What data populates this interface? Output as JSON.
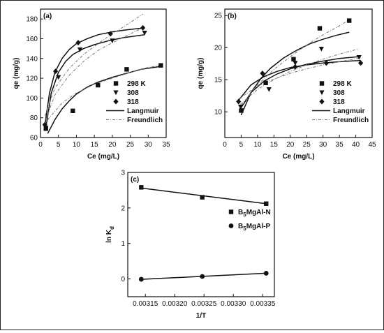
{
  "chart_data": [
    {
      "type": "scatter",
      "panel_label": "(a)",
      "xlabel": "Ce (mg/L)",
      "ylabel": "qe (mg/g)",
      "xlim": [
        0,
        35
      ],
      "ylim": [
        60,
        190
      ],
      "xticks": [
        0,
        5,
        10,
        15,
        20,
        25,
        30,
        35
      ],
      "yticks": [
        60,
        80,
        100,
        120,
        140,
        160,
        180
      ],
      "legend_position": "bottom-right",
      "series": [
        {
          "name": "298 K",
          "marker": "square",
          "x": [
            1.5,
            9,
            16,
            24,
            33.5
          ],
          "y": [
            69,
            87,
            113,
            129,
            133
          ]
        },
        {
          "name": "308",
          "marker": "triangle-down",
          "x": [
            1.5,
            5,
            11,
            20,
            29
          ],
          "y": [
            70,
            121,
            149,
            158,
            166
          ]
        },
        {
          "name": "318",
          "marker": "diamond",
          "x": [
            1.2,
            4.2,
            10.5,
            19.5,
            28.5
          ],
          "y": [
            73,
            127,
            156,
            165,
            171
          ]
        }
      ],
      "fits": [
        {
          "name": "Langmuir",
          "style": "solid",
          "curves": [
            {
              "x": [
                2,
                4,
                6,
                8,
                10,
                13,
                16,
                20,
                24,
                28,
                33.5
              ],
              "y": [
                64,
                78,
                89,
                97,
                104,
                111,
                116,
                121,
                125,
                129,
                132
              ]
            },
            {
              "x": [
                1.5,
                3,
                5,
                7,
                9,
                12,
                15,
                19,
                23,
                29
              ],
              "y": [
                70,
                105,
                126,
                137,
                144,
                150,
                154,
                158,
                161,
                164
              ]
            },
            {
              "x": [
                1.2,
                2.5,
                4,
                6,
                8,
                10,
                13,
                16,
                20,
                24,
                29
              ],
              "y": [
                72,
                105,
                126,
                140,
                149,
                155,
                160,
                164,
                167,
                169,
                171
              ]
            }
          ]
        },
        {
          "name": "Freundlich",
          "style": "dashed",
          "curves": [
            {
              "x": [
                2,
                6,
                10,
                15,
                20,
                25,
                30,
                33.5
              ],
              "y": [
                78,
                95,
                105,
                114,
                120,
                126,
                131,
                133
              ]
            },
            {
              "x": [
                1.5,
                4,
                8,
                12,
                16,
                20,
                24,
                29
              ],
              "y": [
                78,
                103,
                123,
                137,
                148,
                156,
                163,
                172
              ]
            },
            {
              "x": [
                1.2,
                4,
                8,
                12,
                16,
                20,
                24,
                28.5
              ],
              "y": [
                82,
                110,
                130,
                144,
                155,
                165,
                174,
                185
              ]
            }
          ]
        }
      ]
    },
    {
      "type": "scatter",
      "panel_label": "(b)",
      "xlabel": "Ce (mg/L)",
      "ylabel": "qe (mg/g)",
      "xlim": [
        0,
        45
      ],
      "ylim": [
        6,
        26
      ],
      "xticks": [
        0,
        5,
        10,
        15,
        20,
        25,
        30,
        35,
        40,
        45
      ],
      "yticks": [
        10,
        15,
        20,
        25
      ],
      "legend_position": "bottom-right",
      "series": [
        {
          "name": "298 K",
          "marker": "square",
          "x": [
            5,
            12.5,
            21,
            29,
            38
          ],
          "y": [
            10.2,
            14.5,
            18.2,
            23,
            24.2
          ]
        },
        {
          "name": "308",
          "marker": "triangle-down",
          "x": [
            4.8,
            13.5,
            21.5,
            29.5,
            41
          ],
          "y": [
            10.8,
            13.5,
            17.6,
            19.8,
            18.5
          ]
        },
        {
          "name": "318",
          "marker": "diamond",
          "x": [
            4.2,
            11.5,
            21.5,
            31,
            41.5
          ],
          "y": [
            11.6,
            16,
            17,
            17.6,
            17.6
          ]
        }
      ],
      "fits": [
        {
          "name": "Langmuir",
          "style": "solid",
          "curves": [
            {
              "x": [
                5,
                8,
                11,
                14,
                18,
                22,
                26,
                30,
                34,
                38
              ],
              "y": [
                9.5,
                13,
                15.2,
                16.8,
                18.4,
                19.6,
                20.6,
                21.3,
                21.9,
                22.4
              ]
            },
            {
              "x": [
                4.8,
                8,
                12,
                16,
                20,
                25,
                30,
                35,
                41
              ],
              "y": [
                10.5,
                13,
                14.8,
                15.9,
                16.7,
                17.4,
                17.9,
                18.3,
                18.6
              ]
            },
            {
              "x": [
                4.2,
                8,
                12,
                16,
                20,
                25,
                30,
                35,
                41.5
              ],
              "y": [
                11.8,
                14.2,
                15.5,
                16.3,
                16.9,
                17.3,
                17.6,
                17.8,
                18
              ]
            }
          ]
        },
        {
          "name": "Freundlich",
          "style": "dashed",
          "curves": [
            {
              "x": [
                5,
                10,
                15,
                20,
                25,
                30,
                35,
                38
              ],
              "y": [
                11,
                14.2,
                16.6,
                18.6,
                20.4,
                22,
                23.4,
                24.3
              ]
            },
            {
              "x": [
                4.8,
                10,
                15,
                20,
                25,
                30,
                35,
                41
              ],
              "y": [
                11.2,
                13.5,
                15,
                16.3,
                17.3,
                18.2,
                19,
                19.8
              ]
            },
            {
              "x": [
                4.2,
                10,
                15,
                20,
                25,
                30,
                35,
                41.5
              ],
              "y": [
                12,
                14,
                15.1,
                16,
                16.7,
                17.3,
                17.8,
                18.4
              ]
            }
          ]
        }
      ]
    },
    {
      "type": "line",
      "panel_label": "(c)",
      "xlabel": "1/T",
      "ylabel_main": "ln K",
      "ylabel_sub": "d",
      "xlim": [
        0.00312,
        0.00337
      ],
      "ylim": [
        -0.5,
        3
      ],
      "xticks": [
        0.00315,
        0.0032,
        0.00325,
        0.0033,
        0.00335
      ],
      "xtick_labels": [
        "0.00315",
        "0.00320",
        "0.00325",
        "0.00330",
        "0.00335"
      ],
      "yticks": [
        0,
        1,
        2,
        3
      ],
      "legend_position": "right",
      "series": [
        {
          "name_main": "B",
          "name_sub": "5",
          "name_rest": "MgAl-N",
          "marker": "square",
          "x": [
            0.003143,
            0.003247,
            0.003356
          ],
          "y": [
            2.58,
            2.3,
            2.12
          ],
          "fit": [
            [
              0.003143,
              2.56
            ],
            [
              0.003356,
              2.12
            ]
          ]
        },
        {
          "name_main": "B",
          "name_sub": "5",
          "name_rest": "MgAl-P",
          "marker": "circle",
          "x": [
            0.003143,
            0.003247,
            0.003356
          ],
          "y": [
            -0.01,
            0.07,
            0.16
          ],
          "fit": [
            [
              0.003143,
              -0.01
            ],
            [
              0.003356,
              0.16
            ]
          ]
        }
      ]
    }
  ]
}
